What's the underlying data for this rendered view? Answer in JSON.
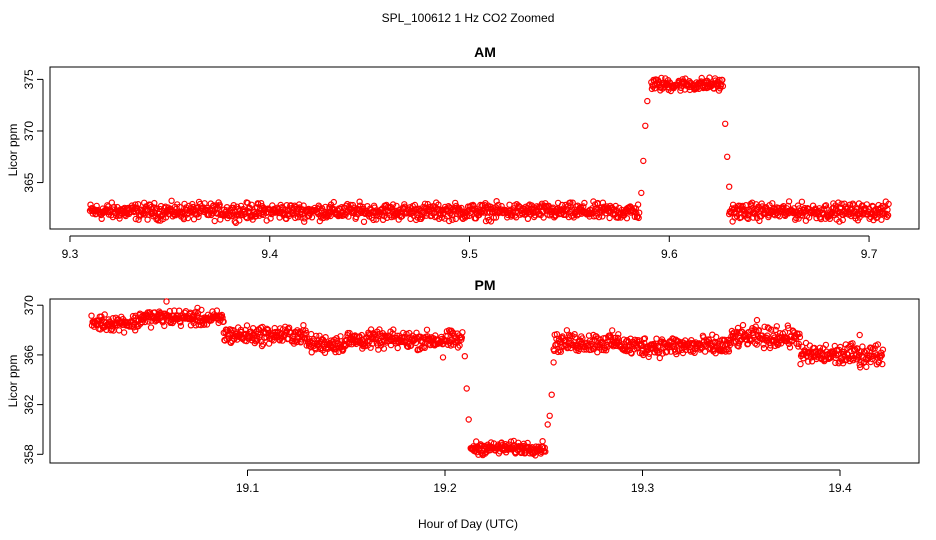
{
  "figure": {
    "title": "SPL_100612  1 Hz CO2 Zoomed",
    "xlabel": "Hour of Day (UTC)"
  },
  "colors": {
    "points": "#ff0000",
    "axes": "#000000",
    "background": "#ffffff"
  },
  "chart_data": [
    {
      "type": "scatter",
      "title": "AM",
      "xlabel": "",
      "ylabel": "Licor ppm",
      "xlim": [
        9.29,
        9.725
      ],
      "ylim": [
        360.5,
        376.2
      ],
      "xticks": [
        9.3,
        9.4,
        9.5,
        9.6,
        9.7
      ],
      "xtick_labels": [
        "9.3",
        "9.4",
        "9.5",
        "9.6",
        "9.7"
      ],
      "yticks": [
        365,
        370,
        375
      ],
      "ytick_labels": [
        "365",
        "370",
        "375"
      ],
      "grid": false,
      "legend": "none",
      "marker": "open-circle",
      "segments": [
        {
          "x_start": 9.31,
          "x_end": 9.585,
          "level": 362.2,
          "noise": 0.55
        },
        {
          "x_start": 9.591,
          "x_end": 9.627,
          "level": 374.5,
          "noise": 0.45
        },
        {
          "x_start": 9.63,
          "x_end": 9.71,
          "level": 362.2,
          "noise": 0.55
        }
      ],
      "transition_points": [
        {
          "x": 9.586,
          "y": 364.0
        },
        {
          "x": 9.587,
          "y": 367.1
        },
        {
          "x": 9.588,
          "y": 370.5
        },
        {
          "x": 9.589,
          "y": 372.9
        },
        {
          "x": 9.628,
          "y": 370.7
        },
        {
          "x": 9.629,
          "y": 367.5
        },
        {
          "x": 9.63,
          "y": 364.6
        }
      ]
    },
    {
      "type": "scatter",
      "title": "PM",
      "xlabel": "",
      "ylabel": "Licor ppm",
      "xlim": [
        19.0,
        19.44
      ],
      "ylim": [
        357.3,
        370.5
      ],
      "xticks": [
        19.1,
        19.2,
        19.3,
        19.4
      ],
      "xtick_labels": [
        "19.1",
        "19.2",
        "19.3",
        "19.4"
      ],
      "yticks": [
        358,
        362,
        366,
        370
      ],
      "ytick_labels": [
        "358",
        "362",
        "366",
        "370"
      ],
      "grid": false,
      "legend": "none",
      "marker": "open-circle",
      "segments": [
        {
          "x_start": 19.021,
          "x_end": 19.045,
          "level": 368.6,
          "noise": 0.45
        },
        {
          "x_start": 19.045,
          "x_end": 19.075,
          "level": 369.0,
          "noise": 0.45
        },
        {
          "x_start": 19.075,
          "x_end": 19.088,
          "level": 368.9,
          "noise": 0.45
        },
        {
          "x_start": 19.088,
          "x_end": 19.13,
          "level": 367.6,
          "noise": 0.5
        },
        {
          "x_start": 19.13,
          "x_end": 19.15,
          "level": 366.9,
          "noise": 0.5
        },
        {
          "x_start": 19.15,
          "x_end": 19.209,
          "level": 367.2,
          "noise": 0.5
        },
        {
          "x_start": 19.213,
          "x_end": 19.251,
          "level": 358.5,
          "noise": 0.35
        },
        {
          "x_start": 19.255,
          "x_end": 19.29,
          "level": 367.0,
          "noise": 0.55
        },
        {
          "x_start": 19.29,
          "x_end": 19.345,
          "level": 366.7,
          "noise": 0.55
        },
        {
          "x_start": 19.345,
          "x_end": 19.38,
          "level": 367.4,
          "noise": 0.55
        },
        {
          "x_start": 19.38,
          "x_end": 19.422,
          "level": 366.0,
          "noise": 0.6
        }
      ],
      "transition_points": [
        {
          "x": 19.21,
          "y": 365.9
        },
        {
          "x": 19.211,
          "y": 363.3
        },
        {
          "x": 19.212,
          "y": 360.8
        },
        {
          "x": 19.252,
          "y": 360.4
        },
        {
          "x": 19.253,
          "y": 361.1
        },
        {
          "x": 19.254,
          "y": 362.8
        },
        {
          "x": 19.255,
          "y": 365.4
        },
        {
          "x": 19.059,
          "y": 370.3
        },
        {
          "x": 19.199,
          "y": 365.8
        },
        {
          "x": 19.358,
          "y": 368.8
        },
        {
          "x": 19.368,
          "y": 368.3
        },
        {
          "x": 19.41,
          "y": 367.6
        }
      ]
    }
  ]
}
